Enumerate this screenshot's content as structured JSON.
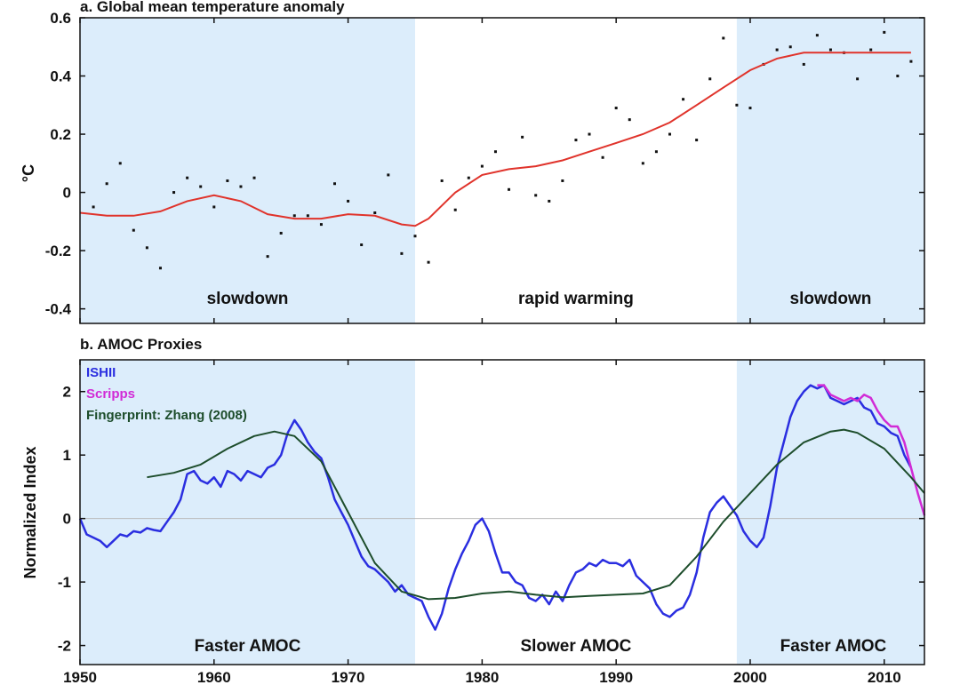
{
  "chart_data": [
    {
      "type": "scatter",
      "title": "a. Global mean temperature anomaly",
      "ylabel": "°C",
      "xlim": [
        1950,
        2013
      ],
      "ylim": [
        -0.45,
        0.6
      ],
      "yticks": [
        "-0.4",
        "-0.2",
        "0",
        "0.2",
        "0.4",
        "0.6"
      ],
      "shaded_ranges": [
        [
          1950,
          1975
        ],
        [
          1999,
          2013
        ]
      ],
      "shade_color": "#dcedfb",
      "regions": [
        {
          "label": "slowdown",
          "x": 1962.5
        },
        {
          "label": "rapid warming",
          "x": 1987
        },
        {
          "label": "slowdown",
          "x": 2006
        }
      ],
      "points": {
        "x": [
          1951,
          1952,
          1953,
          1954,
          1955,
          1956,
          1957,
          1958,
          1959,
          1960,
          1961,
          1962,
          1963,
          1964,
          1965,
          1966,
          1967,
          1968,
          1969,
          1970,
          1971,
          1972,
          1973,
          1974,
          1975,
          1976,
          1977,
          1978,
          1979,
          1980,
          1981,
          1982,
          1983,
          1984,
          1985,
          1986,
          1987,
          1988,
          1989,
          1990,
          1991,
          1992,
          1993,
          1994,
          1995,
          1996,
          1997,
          1998,
          1999,
          2000,
          2001,
          2002,
          2003,
          2004,
          2005,
          2006,
          2007,
          2008,
          2009,
          2010,
          2011,
          2012
        ],
        "y": [
          -0.05,
          0.03,
          0.1,
          -0.13,
          -0.19,
          -0.26,
          0.0,
          0.05,
          0.02,
          -0.05,
          0.04,
          0.02,
          0.05,
          -0.22,
          -0.14,
          -0.08,
          -0.08,
          -0.11,
          0.03,
          -0.03,
          -0.18,
          -0.07,
          0.06,
          -0.21,
          -0.15,
          -0.24,
          0.04,
          -0.06,
          0.05,
          0.09,
          0.14,
          0.01,
          0.19,
          -0.01,
          -0.03,
          0.04,
          0.18,
          0.2,
          0.12,
          0.29,
          0.25,
          0.1,
          0.14,
          0.2,
          0.32,
          0.18,
          0.39,
          0.53,
          0.3,
          0.29,
          0.44,
          0.49,
          0.5,
          0.44,
          0.54,
          0.49,
          0.48,
          0.39,
          0.49,
          0.55,
          0.4,
          0.45
        ]
      },
      "smooth": {
        "color": "#e0332b",
        "x": [
          1950,
          1952,
          1954,
          1956,
          1958,
          1960,
          1962,
          1964,
          1966,
          1968,
          1970,
          1972,
          1974,
          1975,
          1976,
          1978,
          1980,
          1982,
          1984,
          1986,
          1988,
          1990,
          1992,
          1994,
          1996,
          1998,
          2000,
          2002,
          2004,
          2006,
          2008,
          2010,
          2012
        ],
        "y": [
          -0.07,
          -0.08,
          -0.08,
          -0.065,
          -0.03,
          -0.01,
          -0.03,
          -0.075,
          -0.09,
          -0.09,
          -0.075,
          -0.08,
          -0.11,
          -0.115,
          -0.09,
          0.0,
          0.06,
          0.08,
          0.09,
          0.11,
          0.14,
          0.17,
          0.2,
          0.24,
          0.3,
          0.36,
          0.42,
          0.46,
          0.48,
          0.48,
          0.48,
          0.48,
          0.48
        ]
      }
    },
    {
      "type": "line",
      "title": "b. AMOC Proxies",
      "ylabel": "Normalized Index",
      "xlim": [
        1950,
        2013
      ],
      "ylim": [
        -2.3,
        2.5
      ],
      "yticks": [
        "-2",
        "-1",
        "0",
        "1",
        "2"
      ],
      "xticks": [
        "1950",
        "1960",
        "1970",
        "1980",
        "1990",
        "2000",
        "2010"
      ],
      "shaded_ranges": [
        [
          1950,
          1975
        ],
        [
          1999,
          2013
        ]
      ],
      "shade_color": "#dcedfb",
      "regions": [
        {
          "label": "Faster AMOC",
          "x": 1962.5
        },
        {
          "label": "Slower AMOC",
          "x": 1987
        },
        {
          "label": "Faster AMOC",
          "x": 2006.2
        }
      ],
      "series": [
        {
          "name": "ISHII",
          "color": "#2a2ee0",
          "x": [
            1950,
            1950.5,
            1951,
            1951.5,
            1952,
            1952.5,
            1953,
            1953.5,
            1954,
            1954.5,
            1955,
            1955.5,
            1956,
            1956.5,
            1957,
            1957.5,
            1958,
            1958.5,
            1959,
            1959.5,
            1960,
            1960.5,
            1961,
            1961.5,
            1962,
            1962.5,
            1963,
            1963.5,
            1964,
            1964.5,
            1965,
            1965.5,
            1966,
            1966.5,
            1967,
            1967.5,
            1968,
            1968.5,
            1969,
            1969.5,
            1970,
            1970.5,
            1971,
            1971.5,
            1972,
            1972.5,
            1973,
            1973.5,
            1974,
            1974.5,
            1975,
            1975.5,
            1976,
            1976.5,
            1977,
            1977.5,
            1978,
            1978.5,
            1979,
            1979.5,
            1980,
            1980.5,
            1981,
            1981.5,
            1982,
            1982.5,
            1983,
            1983.5,
            1984,
            1984.5,
            1985,
            1985.5,
            1986,
            1986.5,
            1987,
            1987.5,
            1988,
            1988.5,
            1989,
            1989.5,
            1990,
            1990.5,
            1991,
            1991.5,
            1992,
            1992.5,
            1993,
            1993.5,
            1994,
            1994.5,
            1995,
            1995.5,
            1996,
            1996.5,
            1997,
            1997.5,
            1998,
            1998.5,
            1999,
            1999.5,
            2000,
            2000.5,
            2001,
            2001.5,
            2002,
            2002.5,
            2003,
            2003.5,
            2004,
            2004.5,
            2005,
            2005.5,
            2006,
            2006.5,
            2007,
            2007.5,
            2008,
            2008.5,
            2009,
            2009.5,
            2010,
            2010.5,
            2011,
            2011.5,
            2012
          ],
          "y": [
            0.0,
            -0.25,
            -0.3,
            -0.35,
            -0.45,
            -0.35,
            -0.25,
            -0.28,
            -0.2,
            -0.22,
            -0.15,
            -0.18,
            -0.2,
            -0.05,
            0.1,
            0.3,
            0.7,
            0.75,
            0.6,
            0.55,
            0.65,
            0.5,
            0.75,
            0.7,
            0.6,
            0.75,
            0.7,
            0.65,
            0.8,
            0.85,
            1.0,
            1.35,
            1.55,
            1.4,
            1.2,
            1.05,
            0.95,
            0.65,
            0.3,
            0.1,
            -0.1,
            -0.35,
            -0.6,
            -0.75,
            -0.8,
            -0.9,
            -1.0,
            -1.15,
            -1.05,
            -1.2,
            -1.25,
            -1.3,
            -1.55,
            -1.75,
            -1.5,
            -1.1,
            -0.8,
            -0.55,
            -0.35,
            -0.1,
            0.0,
            -0.2,
            -0.55,
            -0.85,
            -0.85,
            -1.0,
            -1.05,
            -1.25,
            -1.3,
            -1.2,
            -1.35,
            -1.15,
            -1.3,
            -1.05,
            -0.85,
            -0.8,
            -0.7,
            -0.75,
            -0.65,
            -0.7,
            -0.7,
            -0.75,
            -0.65,
            -0.9,
            -1.0,
            -1.1,
            -1.35,
            -1.5,
            -1.55,
            -1.45,
            -1.4,
            -1.2,
            -0.85,
            -0.3,
            0.1,
            0.25,
            0.35,
            0.2,
            0.05,
            -0.2,
            -0.35,
            -0.45,
            -0.3,
            0.2,
            0.8,
            1.2,
            1.6,
            1.85,
            2.0,
            2.1,
            2.05,
            2.1,
            1.9,
            1.85,
            1.8,
            1.85,
            1.9,
            1.75,
            1.7,
            1.5,
            1.45,
            1.35,
            1.3,
            1.0,
            0.8
          ]
        },
        {
          "name": "Scripps",
          "color": "#d12bd6",
          "x": [
            2005,
            2005.5,
            2006,
            2006.5,
            2007,
            2007.5,
            2008,
            2008.5,
            2009,
            2009.5,
            2010,
            2010.5,
            2011,
            2011.5,
            2012,
            2012.5,
            2013
          ],
          "y": [
            2.1,
            2.1,
            1.95,
            1.9,
            1.85,
            1.9,
            1.85,
            1.95,
            1.9,
            1.7,
            1.55,
            1.45,
            1.45,
            1.2,
            0.8,
            0.4,
            0.05
          ]
        },
        {
          "name": "Fingerprint: Zhang (2008)",
          "color": "#1d4d2b",
          "x": [
            1955,
            1957,
            1959,
            1961,
            1963,
            1964.5,
            1966,
            1968,
            1970,
            1972,
            1974,
            1976,
            1978,
            1980,
            1982,
            1984,
            1986,
            1988,
            1990,
            1992,
            1994,
            1996,
            1998,
            2000,
            2002,
            2004,
            2006,
            2007,
            2008,
            2010,
            2012,
            2013
          ],
          "y": [
            0.65,
            0.72,
            0.85,
            1.1,
            1.3,
            1.37,
            1.3,
            0.9,
            0.1,
            -0.7,
            -1.15,
            -1.27,
            -1.25,
            -1.18,
            -1.15,
            -1.2,
            -1.24,
            -1.22,
            -1.2,
            -1.18,
            -1.05,
            -0.6,
            -0.05,
            0.4,
            0.85,
            1.2,
            1.37,
            1.4,
            1.35,
            1.1,
            0.65,
            0.4
          ]
        }
      ]
    }
  ]
}
